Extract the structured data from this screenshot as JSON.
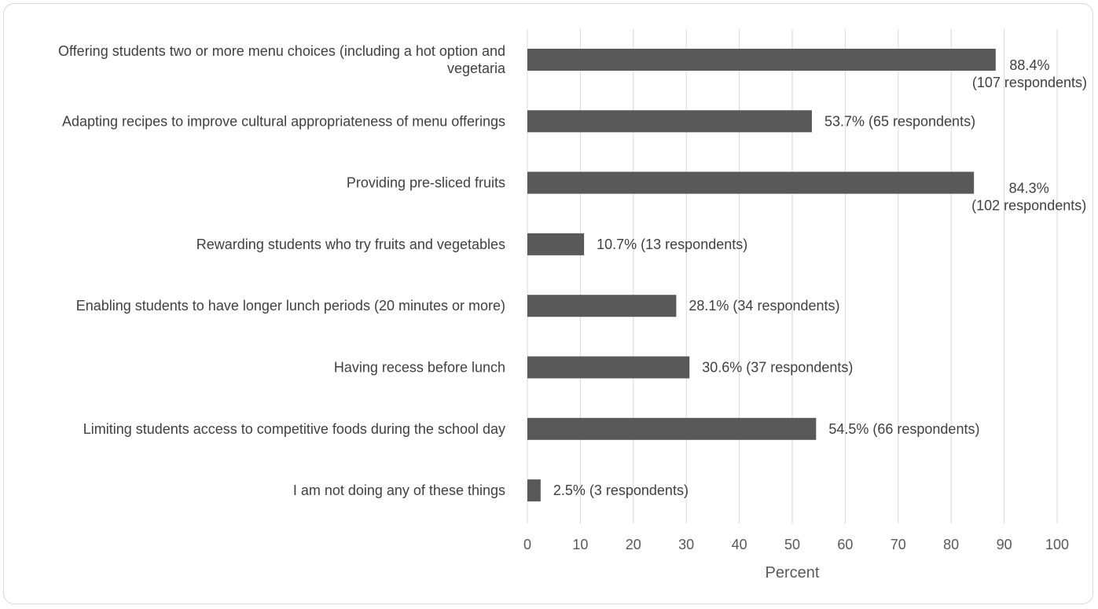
{
  "chart_data": {
    "type": "bar",
    "orientation": "horizontal",
    "categories": [
      "Offering students two or more menu choices (including a hot option and vegetaria",
      "Adapting recipes to improve cultural appropriateness of menu offerings",
      "Providing pre-sliced fruits",
      "Rewarding students who try fruits and vegetables",
      "Enabling students to have longer lunch periods (20 minutes or more)",
      "Having recess before lunch",
      "Limiting students access to competitive foods during the school day",
      "I am not doing any of these things"
    ],
    "values": [
      88.4,
      53.7,
      84.3,
      10.7,
      28.1,
      30.6,
      54.5,
      2.5
    ],
    "data_labels": [
      "88.4% (107 respondents)",
      "53.7% (65 respondents)",
      "84.3% (102 respondents)",
      "10.7% (13 respondents)",
      "28.1% (34 respondents)",
      "30.6% (37 respondents)",
      "54.5% (66 respondents)",
      "2.5% (3 respondents)"
    ],
    "xlabel": "Percent",
    "ylabel": "",
    "xlim": [
      0,
      100
    ],
    "xticks": [
      0,
      10,
      20,
      30,
      40,
      50,
      60,
      70,
      80,
      90,
      100
    ],
    "grid": "vertical",
    "bar_color": "#595959",
    "grid_color": "#d9d9d9"
  }
}
